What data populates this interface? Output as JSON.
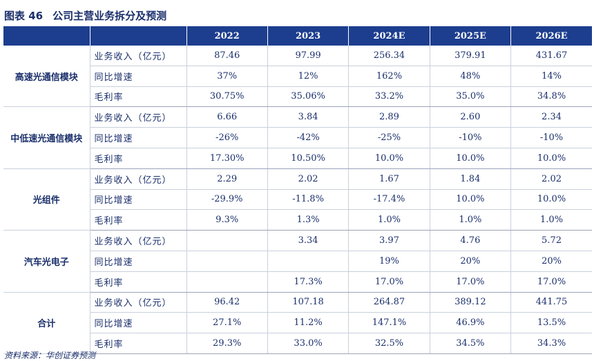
{
  "title": {
    "fig_no": "图表 46",
    "text": "公司主营业务拆分及预测"
  },
  "header": [
    "",
    "",
    "2022",
    "2023",
    "2024E",
    "2025E",
    "2026E"
  ],
  "groups": [
    {
      "name": "高速光通信模块",
      "rows": [
        {
          "label": "业务收入（亿元）",
          "values": [
            "87.46",
            "97.99",
            "256.34",
            "379.91",
            "431.67"
          ]
        },
        {
          "label": "同比增速",
          "values": [
            "37%",
            "12%",
            "162%",
            "48%",
            "14%"
          ]
        },
        {
          "label": "毛利率",
          "values": [
            "30.75%",
            "35.06%",
            "33.2%",
            "35.0%",
            "34.8%"
          ]
        }
      ]
    },
    {
      "name": "中低速光通信模块",
      "rows": [
        {
          "label": "业务收入（亿元）",
          "values": [
            "6.66",
            "3.84",
            "2.89",
            "2.60",
            "2.34"
          ]
        },
        {
          "label": "同比增速",
          "values": [
            "-26%",
            "-42%",
            "-25%",
            "-10%",
            "-10%"
          ]
        },
        {
          "label": "毛利率",
          "values": [
            "17.30%",
            "10.50%",
            "10.0%",
            "10.0%",
            "10.0%"
          ]
        }
      ]
    },
    {
      "name": "光组件",
      "rows": [
        {
          "label": "业务收入（亿元）",
          "values": [
            "2.29",
            "2.02",
            "1.67",
            "1.84",
            "2.02"
          ]
        },
        {
          "label": "同比增速",
          "values": [
            "-29.9%",
            "-11.8%",
            "-17.4%",
            "10.0%",
            "10.0%"
          ]
        },
        {
          "label": "毛利率",
          "values": [
            "9.3%",
            "1.3%",
            "1.0%",
            "1.0%",
            "1.0%"
          ]
        }
      ]
    },
    {
      "name": "汽车光电子",
      "rows": [
        {
          "label": "业务收入（亿元）",
          "values": [
            "",
            "3.34",
            "3.97",
            "4.76",
            "5.72"
          ]
        },
        {
          "label": "同比增速",
          "values": [
            "",
            "",
            "19%",
            "20%",
            "20%"
          ]
        },
        {
          "label": "毛利率",
          "values": [
            "",
            "17.3%",
            "17.0%",
            "17.0%",
            "17.0%"
          ]
        }
      ]
    },
    {
      "name": "合计",
      "rows": [
        {
          "label": "业务收入（亿元）",
          "values": [
            "96.42",
            "107.18",
            "264.87",
            "389.12",
            "441.75"
          ]
        },
        {
          "label": "同比增速",
          "values": [
            "27.1%",
            "11.2%",
            "147.1%",
            "46.9%",
            "13.5%"
          ]
        },
        {
          "label": "毛利率",
          "values": [
            "29.3%",
            "33.0%",
            "32.5%",
            "34.5%",
            "34.3%"
          ]
        }
      ]
    }
  ],
  "source": "资料来源：华创证券预测"
}
